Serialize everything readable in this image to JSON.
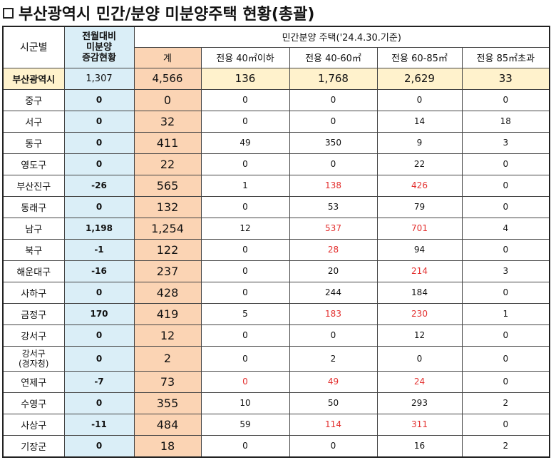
{
  "title": "부산광역시 민간/분양 미분양주택 현황(총괄)",
  "header": {
    "region": "시군별",
    "change": "전월대비 미분양 증감현황",
    "change_line1": "전월대비",
    "change_line2": "미분양",
    "change_line3": "증감현황",
    "group": "민간분양 주택('24.4.30.기준)",
    "total": "계",
    "size1": "전용 40㎡이하",
    "size2": "전용 40-60㎡",
    "size3": "전용 60-85㎡",
    "size4": "전용 85㎡초과"
  },
  "rows": [
    {
      "region": "부산광역시",
      "change": "1,307",
      "total": "4,566",
      "s1": "136",
      "s2": "1,768",
      "s3": "2,629",
      "s4": "33",
      "red": []
    },
    {
      "region": "중구",
      "change": "0",
      "total": "0",
      "s1": "0",
      "s2": "0",
      "s3": "0",
      "s4": "0",
      "red": []
    },
    {
      "region": "서구",
      "change": "0",
      "total": "32",
      "s1": "0",
      "s2": "0",
      "s3": "14",
      "s4": "18",
      "red": []
    },
    {
      "region": "동구",
      "change": "0",
      "total": "411",
      "s1": "49",
      "s2": "350",
      "s3": "9",
      "s4": "3",
      "red": []
    },
    {
      "region": "영도구",
      "change": "0",
      "total": "22",
      "s1": "0",
      "s2": "0",
      "s3": "22",
      "s4": "0",
      "red": []
    },
    {
      "region": "부산진구",
      "change": "-26",
      "total": "565",
      "s1": "1",
      "s2": "138",
      "s3": "426",
      "s4": "0",
      "red": [
        "s2",
        "s3"
      ]
    },
    {
      "region": "동래구",
      "change": "0",
      "total": "132",
      "s1": "0",
      "s2": "53",
      "s3": "79",
      "s4": "0",
      "red": []
    },
    {
      "region": "남구",
      "change": "1,198",
      "total": "1,254",
      "s1": "12",
      "s2": "537",
      "s3": "701",
      "s4": "4",
      "red": [
        "s2",
        "s3"
      ]
    },
    {
      "region": "북구",
      "change": "-1",
      "total": "122",
      "s1": "0",
      "s2": "28",
      "s3": "94",
      "s4": "0",
      "red": [
        "s2"
      ]
    },
    {
      "region": "해운대구",
      "change": "-16",
      "total": "237",
      "s1": "0",
      "s2": "20",
      "s3": "214",
      "s4": "3",
      "red": [
        "s3"
      ]
    },
    {
      "region": "사하구",
      "change": "0",
      "total": "428",
      "s1": "0",
      "s2": "244",
      "s3": "184",
      "s4": "0",
      "red": []
    },
    {
      "region": "금정구",
      "change": "170",
      "total": "419",
      "s1": "5",
      "s2": "183",
      "s3": "230",
      "s4": "1",
      "red": [
        "s2",
        "s3"
      ]
    },
    {
      "region": "강서구",
      "change": "0",
      "total": "12",
      "s1": "0",
      "s2": "0",
      "s3": "12",
      "s4": "0",
      "red": []
    },
    {
      "region": "강서구 (경자청)",
      "region_line1": "강서구",
      "region_line2": "(경자청)",
      "change": "0",
      "total": "2",
      "s1": "0",
      "s2": "2",
      "s3": "0",
      "s4": "0",
      "red": []
    },
    {
      "region": "연제구",
      "change": "-7",
      "total": "73",
      "s1": "0",
      "s2": "49",
      "s3": "24",
      "s4": "0",
      "red": [
        "s1",
        "s2",
        "s3"
      ]
    },
    {
      "region": "수영구",
      "change": "0",
      "total": "355",
      "s1": "10",
      "s2": "50",
      "s3": "293",
      "s4": "2",
      "red": []
    },
    {
      "region": "사상구",
      "change": "-11",
      "total": "484",
      "s1": "59",
      "s2": "114",
      "s3": "311",
      "s4": "0",
      "red": [
        "s2",
        "s3"
      ]
    },
    {
      "region": "기장군",
      "change": "0",
      "total": "18",
      "s1": "0",
      "s2": "0",
      "s3": "16",
      "s4": "2",
      "red": []
    }
  ],
  "colors": {
    "change_col": "#daeef7",
    "total_col": "#fbd4b4",
    "total_row": "#fff2cc",
    "red_text": "#e3302f"
  }
}
